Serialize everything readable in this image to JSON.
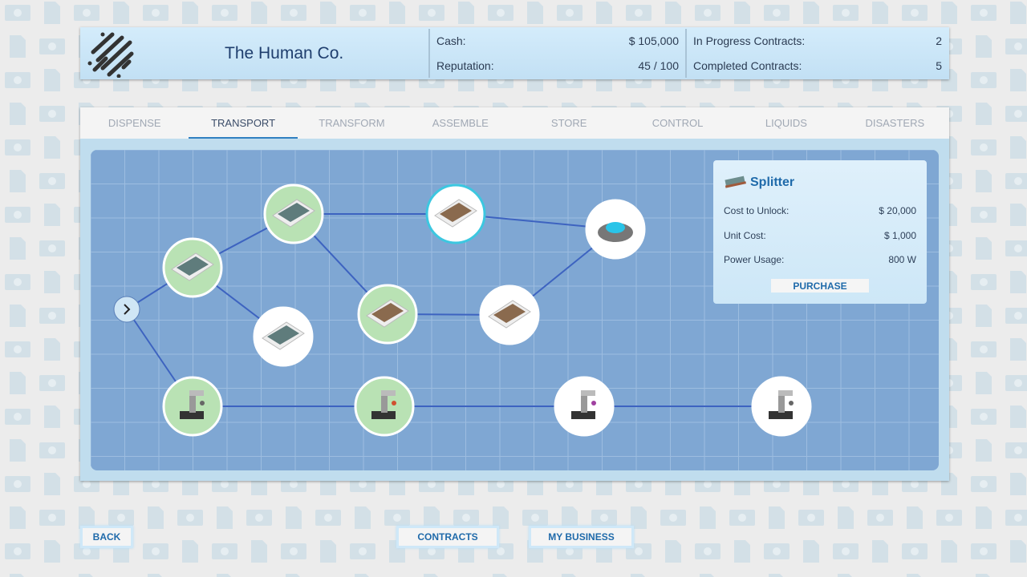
{
  "header": {
    "company": "The Human Co.",
    "cash_label": "Cash:",
    "cash": "$ 105,000",
    "reputation_label": "Reputation:",
    "reputation": "45 / 100",
    "in_progress_label": "In Progress Contracts:",
    "in_progress": "2",
    "completed_label": "Completed Contracts:",
    "completed": "5"
  },
  "tabs": [
    {
      "label": "DISPENSE"
    },
    {
      "label": "TRANSPORT",
      "active": true
    },
    {
      "label": "TRANSFORM"
    },
    {
      "label": "ASSEMBLE"
    },
    {
      "label": "STORE"
    },
    {
      "label": "CONTROL"
    },
    {
      "label": "LIQUIDS"
    },
    {
      "label": "DISASTERS"
    }
  ],
  "tree": {
    "nodes": [
      {
        "id": "A",
        "icon": "conveyor-icon",
        "state": "unlocked"
      },
      {
        "id": "B",
        "icon": "ramp-conveyor-icon",
        "state": "unlocked"
      },
      {
        "id": "C",
        "icon": "splitter-icon",
        "state": "selected"
      },
      {
        "id": "D",
        "icon": "turntable-icon",
        "state": "locked"
      },
      {
        "id": "E",
        "icon": "conveyor-gate-icon",
        "state": "locked"
      },
      {
        "id": "F",
        "icon": "roller-conveyor-icon",
        "state": "unlocked"
      },
      {
        "id": "G",
        "icon": "sorter-icon",
        "state": "locked"
      },
      {
        "id": "H",
        "icon": "robot-arm-icon",
        "state": "unlocked"
      },
      {
        "id": "I",
        "icon": "robot-arm-icon",
        "state": "unlocked"
      },
      {
        "id": "J",
        "icon": "robot-arm-icon",
        "state": "locked"
      },
      {
        "id": "K",
        "icon": "robot-arm-icon",
        "state": "locked"
      }
    ],
    "edges": [
      [
        "S",
        "A"
      ],
      [
        "S",
        "H"
      ],
      [
        "A",
        "B"
      ],
      [
        "A",
        "E"
      ],
      [
        "B",
        "C"
      ],
      [
        "B",
        "F"
      ],
      [
        "C",
        "D"
      ],
      [
        "F",
        "G"
      ],
      [
        "G",
        "D"
      ],
      [
        "H",
        "I"
      ],
      [
        "I",
        "J"
      ],
      [
        "J",
        "K"
      ]
    ]
  },
  "colors": {
    "unlocked": "#b9e2b4",
    "locked": "#ffffff",
    "selected_border": "#3cc7e0",
    "edge": "#3d63c0"
  },
  "info": {
    "title": "Splitter",
    "icon": "splitter-icon",
    "cost_label": "Cost to Unlock:",
    "cost": "$ 20,000",
    "unit_label": "Unit Cost:",
    "unit": "$ 1,000",
    "power_label": "Power Usage:",
    "power": "800 W",
    "purchase": "PURCHASE"
  },
  "footer": {
    "back": "BACK",
    "contracts": "CONTRACTS",
    "my_business": "MY BUSINESS"
  }
}
